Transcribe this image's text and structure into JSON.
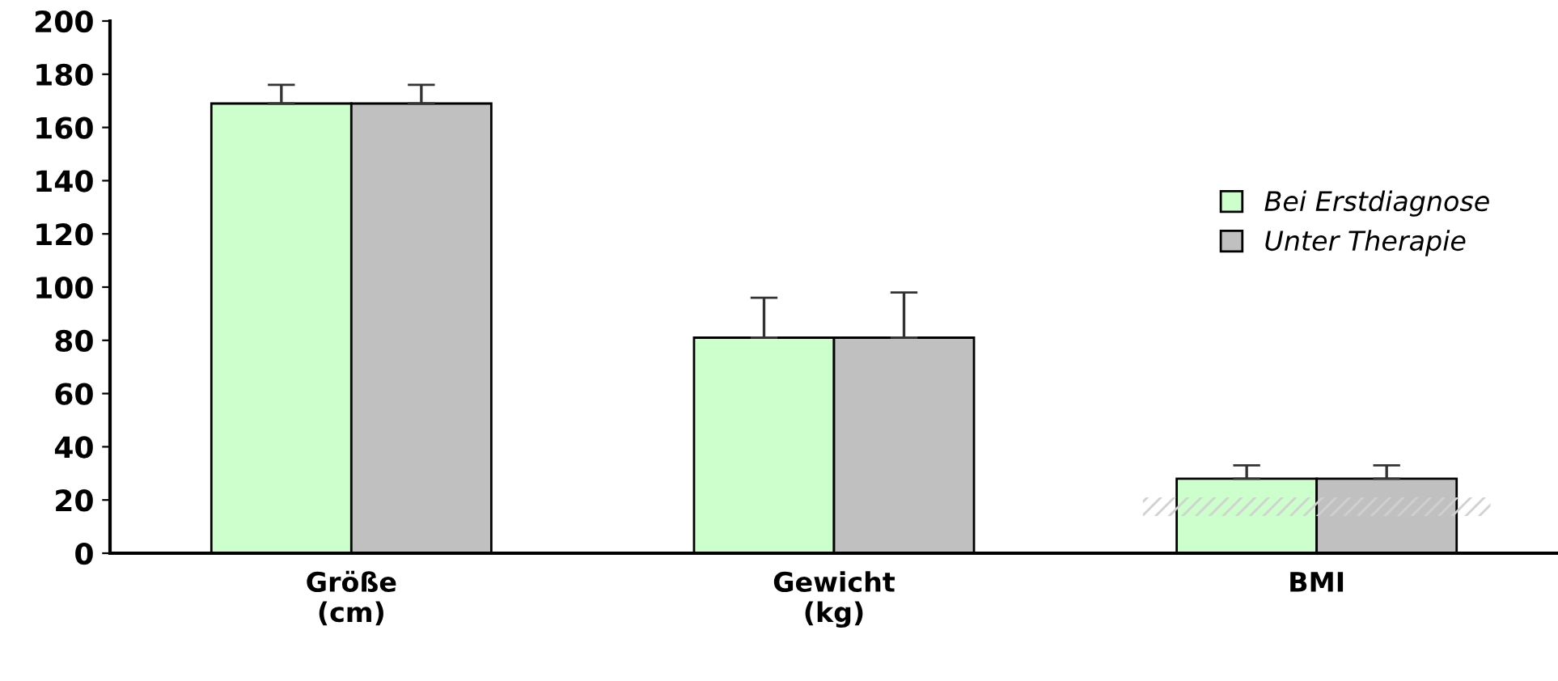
{
  "chart_data": {
    "type": "bar",
    "categories": [
      "Größe\n(cm)",
      "Gewicht\n(kg)",
      "BMI"
    ],
    "series": [
      {
        "name": "Bei Erstdiagnose",
        "color": "#ccffcc",
        "values": [
          169,
          81,
          28
        ],
        "errors": [
          7,
          15,
          5
        ]
      },
      {
        "name": "Unter Therapie",
        "color": "#c0c0c0",
        "values": [
          169,
          81,
          28
        ],
        "errors": [
          7,
          17,
          5
        ]
      }
    ],
    "ylim": [
      0,
      200
    ],
    "yticks": [
      0,
      20,
      40,
      60,
      80,
      100,
      120,
      140,
      160,
      180,
      200
    ],
    "bands": [
      {
        "axis": "y",
        "from": 14,
        "to": 21,
        "color": "#d0d0d0"
      }
    ],
    "grid": false,
    "legend": "right"
  }
}
